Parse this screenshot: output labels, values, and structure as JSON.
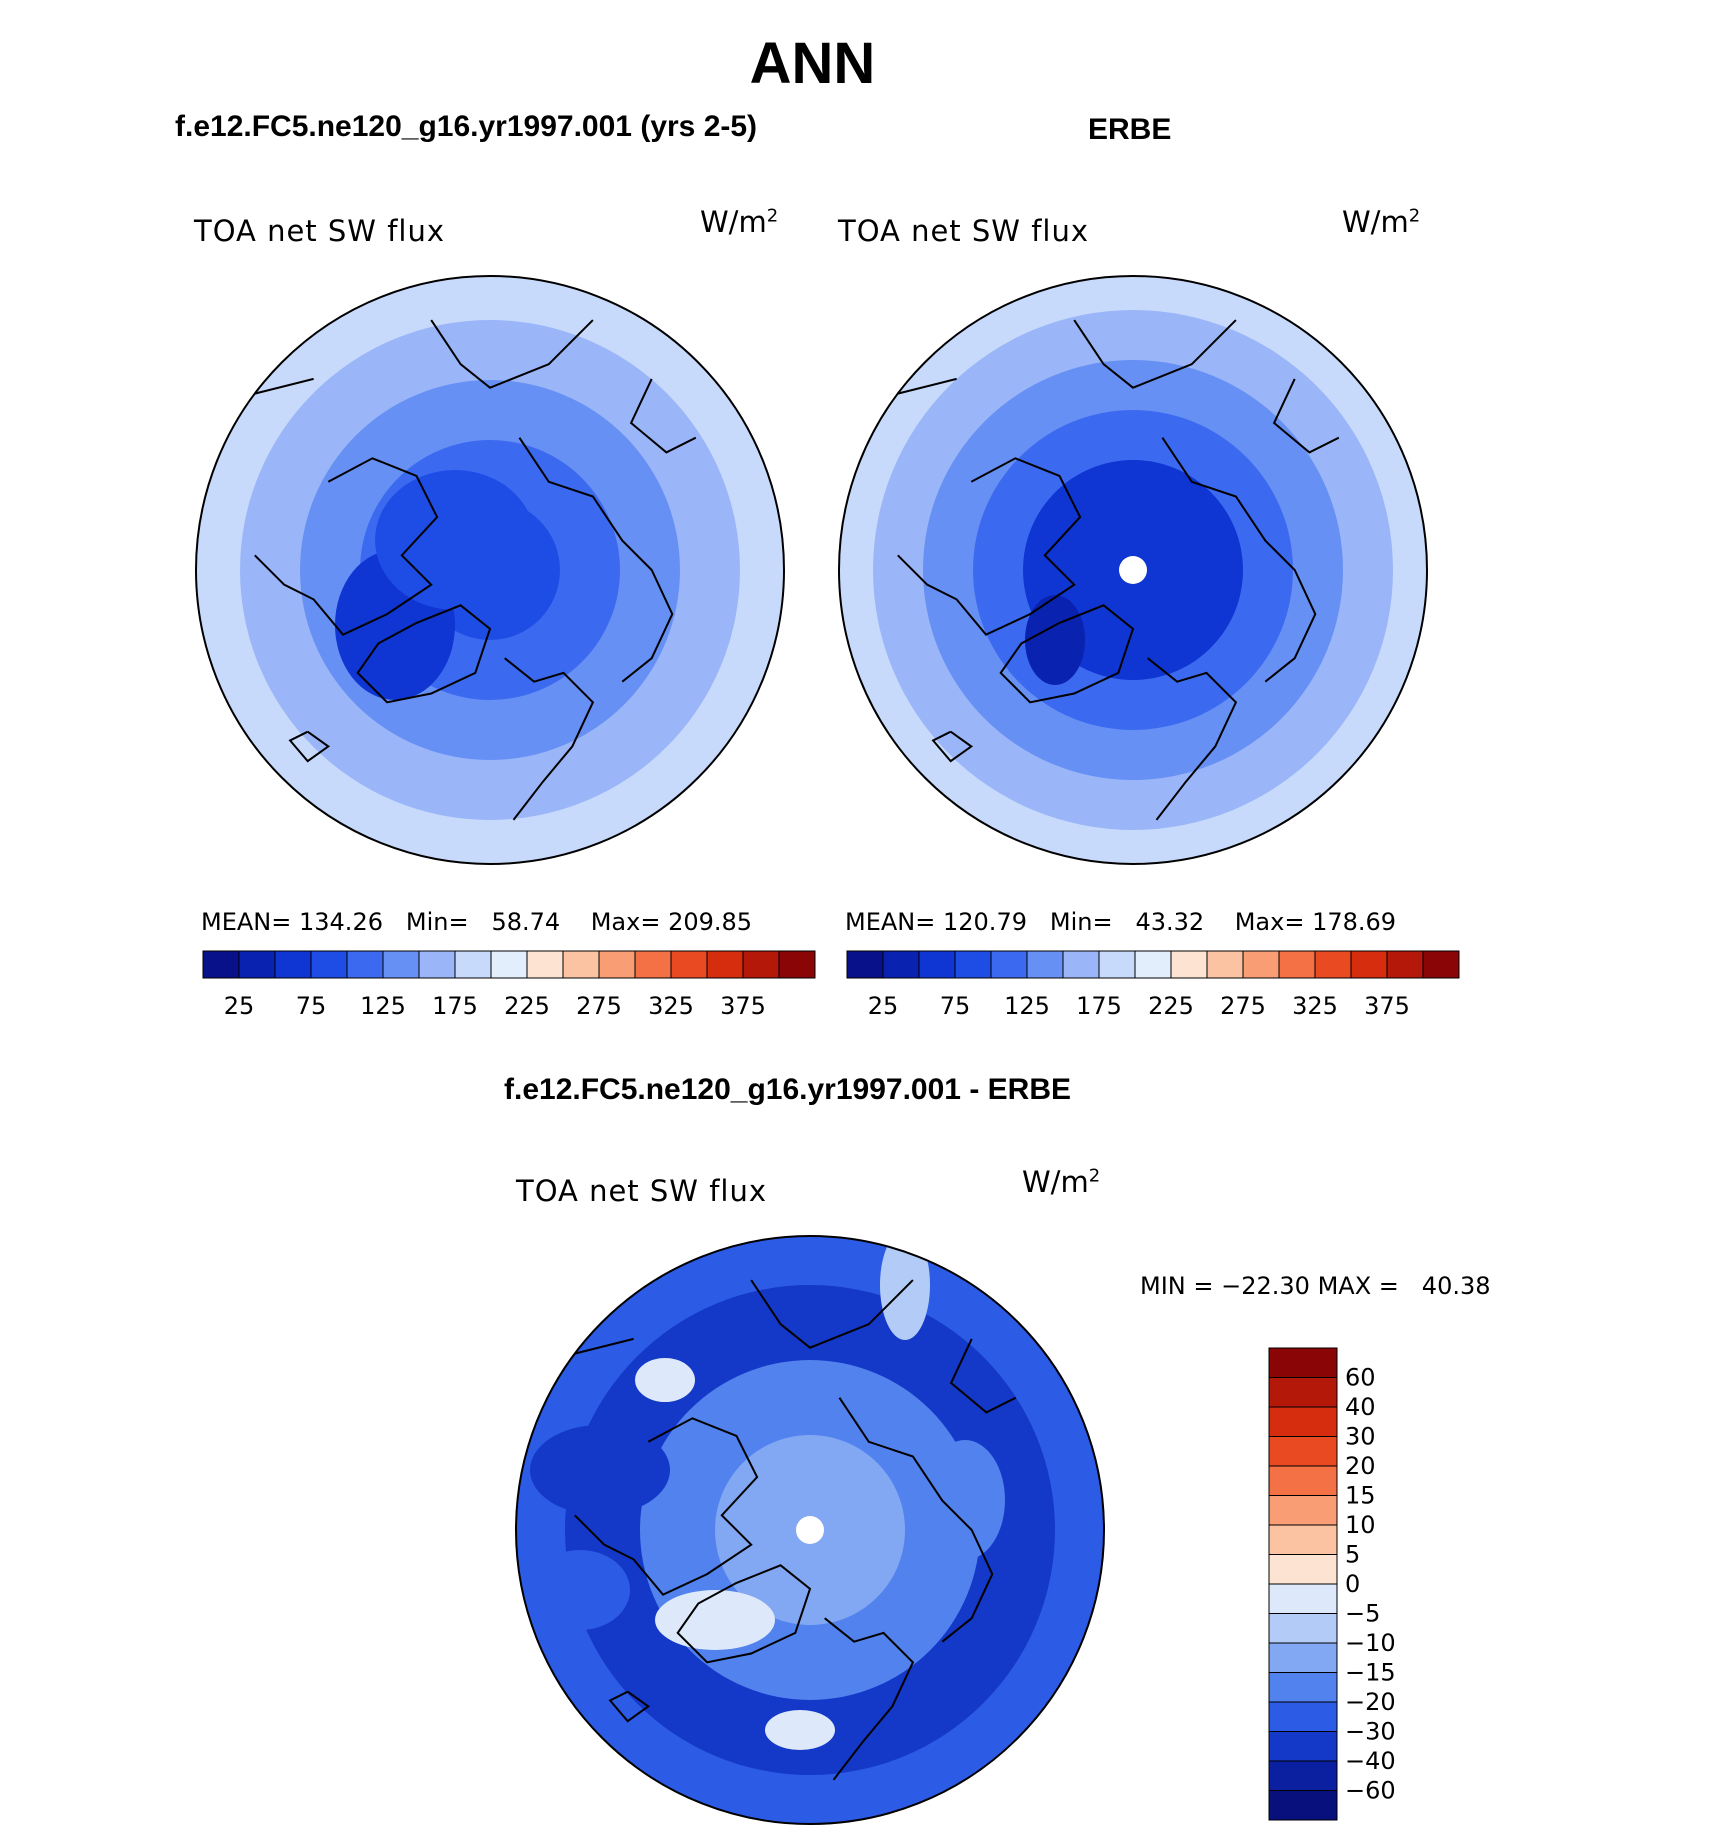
{
  "main_title": "ANN",
  "chart_data": [
    {
      "type": "heatmap",
      "projection": "north-polar-stereographic",
      "title": "f.e12.FC5.ne120_g16.yr1997.001 (yrs 2-5)",
      "variable": "TOA net SW flux",
      "units_base": "W/m",
      "units_exp": "2",
      "stats": {
        "mean_label": "MEAN=",
        "mean": "134.26",
        "min_label": "Min=",
        "min": "58.74",
        "max_label": "Max=",
        "max": "209.85"
      },
      "levels": [
        "25",
        "75",
        "125",
        "175",
        "225",
        "275",
        "325",
        "375"
      ],
      "colormap": [
        "#08108a",
        "#0a22b0",
        "#0f35d2",
        "#1e4de6",
        "#3b6af0",
        "#6790f4",
        "#9ab6f8",
        "#c8dafb",
        "#e3eefc",
        "#fde4d2",
        "#fbc3a2",
        "#f99d74",
        "#f47146",
        "#ea4a22",
        "#d52d0e",
        "#b31808",
        "#8a0505"
      ]
    },
    {
      "type": "heatmap",
      "projection": "north-polar-stereographic",
      "title": "ERBE",
      "variable": "TOA net SW flux",
      "units_base": "W/m",
      "units_exp": "2",
      "stats": {
        "mean_label": "MEAN=",
        "mean": "120.79",
        "min_label": "Min=",
        "min": "43.32",
        "max_label": "Max=",
        "max": "178.69"
      },
      "levels": [
        "25",
        "75",
        "125",
        "175",
        "225",
        "275",
        "325",
        "375"
      ],
      "colormap": [
        "#08108a",
        "#0a22b0",
        "#0f35d2",
        "#1e4de6",
        "#3b6af0",
        "#6790f4",
        "#9ab6f8",
        "#c8dafb",
        "#e3eefc",
        "#fde4d2",
        "#fbc3a2",
        "#f99d74",
        "#f47146",
        "#ea4a22",
        "#d52d0e",
        "#b31808",
        "#8a0505"
      ]
    },
    {
      "type": "heatmap",
      "projection": "north-polar-stereographic",
      "title": "f.e12.FC5.ne120_g16.yr1997.001 - ERBE",
      "variable": "TOA net SW flux",
      "units_base": "W/m",
      "units_exp": "2",
      "stats": {
        "min_label": "MIN =",
        "min": "−22.30",
        "max_label": "MAX =",
        "max": "40.38"
      },
      "levels": [
        "60",
        "40",
        "30",
        "20",
        "15",
        "10",
        "5",
        "0",
        "−5",
        "−10",
        "−15",
        "−20",
        "−30",
        "−40",
        "−60"
      ],
      "colormap": [
        "#8a0505",
        "#b31808",
        "#d52d0e",
        "#ea4a22",
        "#f47146",
        "#f99d74",
        "#fbc3a2",
        "#fde4d2",
        "#dde9fa",
        "#b3ccf7",
        "#83a8f3",
        "#5282ee",
        "#2c5be6",
        "#1438c8",
        "#0a20a0",
        "#08107e"
      ]
    }
  ]
}
